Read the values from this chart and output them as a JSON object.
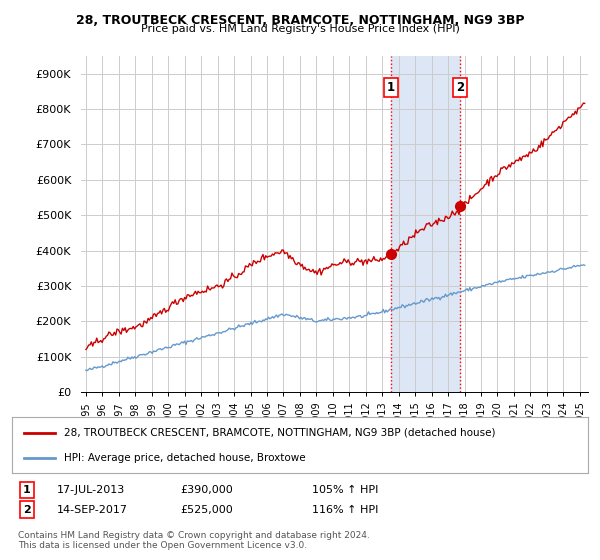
{
  "title1": "28, TROUTBECK CRESCENT, BRAMCOTE, NOTTINGHAM, NG9 3BP",
  "title2": "Price paid vs. HM Land Registry's House Price Index (HPI)",
  "ylabel_ticks": [
    "£0",
    "£100K",
    "£200K",
    "£300K",
    "£400K",
    "£500K",
    "£600K",
    "£700K",
    "£800K",
    "£900K"
  ],
  "ytick_vals": [
    0,
    100000,
    200000,
    300000,
    400000,
    500000,
    600000,
    700000,
    800000,
    900000
  ],
  "ylim": [
    0,
    950000
  ],
  "xlim_start": 1994.7,
  "xlim_end": 2025.5,
  "sale1_date": 2013.54,
  "sale1_price": 390000,
  "sale1_label": "1",
  "sale2_date": 2017.71,
  "sale2_price": 525000,
  "sale2_label": "2",
  "hpi_color": "#6699cc",
  "house_color": "#cc0000",
  "legend_house": "28, TROUTBECK CRESCENT, BRAMCOTE, NOTTINGHAM, NG9 3BP (detached house)",
  "legend_hpi": "HPI: Average price, detached house, Broxtowe",
  "annot1_date": "17-JUL-2013",
  "annot1_price": "£390,000",
  "annot1_hpi": "105% ↑ HPI",
  "annot2_date": "14-SEP-2017",
  "annot2_price": "£525,000",
  "annot2_hpi": "116% ↑ HPI",
  "footnote": "Contains HM Land Registry data © Crown copyright and database right 2024.\nThis data is licensed under the Open Government Licence v3.0.",
  "background_color": "#ffffff",
  "grid_color": "#cccccc",
  "shaded_color": "#dce6f5"
}
